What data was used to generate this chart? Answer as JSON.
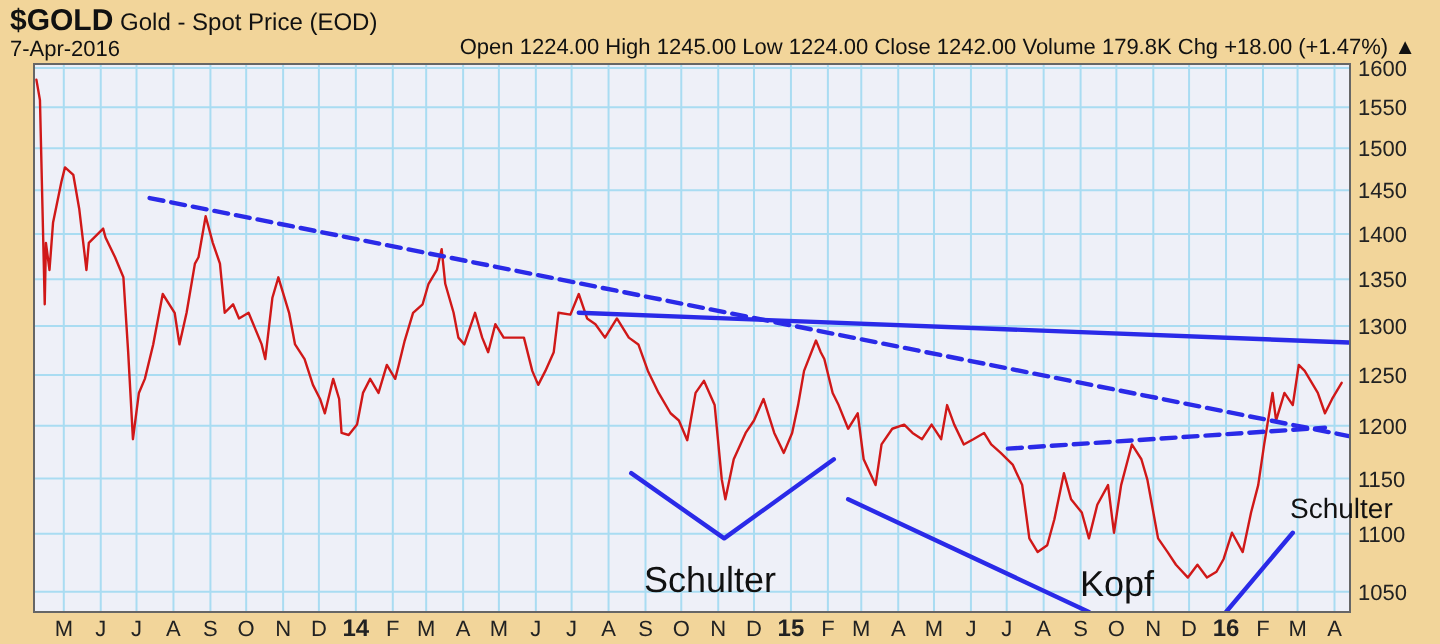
{
  "chart_data": {
    "type": "line",
    "title": "$GOLD Gold - Spot Price (EOD)",
    "subtitle": "7-Apr-2016",
    "log": true,
    "grid": true,
    "annotations": [
      "Open 1224.00  High 1245.00  Low 1224.00  Close 1242.00  Volume 179.8K  Chg +18.00 (+1.47%) ▲",
      "Schulter",
      "Kopf",
      "Schulter"
    ],
    "xlim": [
      "2013-04-06",
      "2016-04-14"
    ],
    "ylim": [
      1033,
      1605
    ],
    "yticks": [
      1050,
      1100,
      1150,
      1200,
      1250,
      1300,
      1350,
      1400,
      1450,
      1500,
      1550,
      1600
    ],
    "xticks": [
      {
        "value": "2013-05-01",
        "label": "M"
      },
      {
        "value": "2013-06-01",
        "label": "J"
      },
      {
        "value": "2013-07-01",
        "label": "J"
      },
      {
        "value": "2013-08-01",
        "label": "A"
      },
      {
        "value": "2013-09-01",
        "label": "S"
      },
      {
        "value": "2013-10-01",
        "label": "O"
      },
      {
        "value": "2013-11-01",
        "label": "N"
      },
      {
        "value": "2013-12-01",
        "label": "D"
      },
      {
        "value": "2014-01-01",
        "label": "14"
      },
      {
        "value": "2014-02-01",
        "label": "F"
      },
      {
        "value": "2014-03-01",
        "label": "M"
      },
      {
        "value": "2014-04-01",
        "label": "A"
      },
      {
        "value": "2014-05-01",
        "label": "M"
      },
      {
        "value": "2014-06-01",
        "label": "J"
      },
      {
        "value": "2014-07-01",
        "label": "J"
      },
      {
        "value": "2014-08-01",
        "label": "A"
      },
      {
        "value": "2014-09-01",
        "label": "S"
      },
      {
        "value": "2014-10-01",
        "label": "O"
      },
      {
        "value": "2014-11-01",
        "label": "N"
      },
      {
        "value": "2014-12-01",
        "label": "D"
      },
      {
        "value": "2015-01-01",
        "label": "15"
      },
      {
        "value": "2015-02-01",
        "label": "F"
      },
      {
        "value": "2015-03-01",
        "label": "M"
      },
      {
        "value": "2015-04-01",
        "label": "A"
      },
      {
        "value": "2015-05-01",
        "label": "M"
      },
      {
        "value": "2015-06-01",
        "label": "J"
      },
      {
        "value": "2015-07-01",
        "label": "J"
      },
      {
        "value": "2015-08-01",
        "label": "A"
      },
      {
        "value": "2015-09-01",
        "label": "S"
      },
      {
        "value": "2015-10-01",
        "label": "O"
      },
      {
        "value": "2015-11-01",
        "label": "N"
      },
      {
        "value": "2015-12-01",
        "label": "D"
      },
      {
        "value": "2016-01-01",
        "label": "16"
      },
      {
        "value": "2016-02-01",
        "label": "F"
      },
      {
        "value": "2016-03-01",
        "label": "M"
      },
      {
        "value": "2016-04-01",
        "label": "A"
      }
    ],
    "series": [
      {
        "type": "line",
        "color": "#d01818",
        "x": [
          "2013-04-08",
          "2013-04-11",
          "2013-04-15",
          "2013-04-16",
          "2013-04-19",
          "2013-04-22",
          "2013-04-29",
          "2013-05-02",
          "2013-05-09",
          "2013-05-14",
          "2013-05-20",
          "2013-05-22",
          "2013-06-03",
          "2013-06-05",
          "2013-06-13",
          "2013-06-20",
          "2013-06-24",
          "2013-06-28",
          "2013-07-03",
          "2013-07-08",
          "2013-07-15",
          "2013-07-23",
          "2013-08-02",
          "2013-08-06",
          "2013-08-12",
          "2013-08-19",
          "2013-08-22",
          "2013-08-28",
          "2013-09-03",
          "2013-09-09",
          "2013-09-13",
          "2013-09-20",
          "2013-09-25",
          "2013-10-03",
          "2013-10-14",
          "2013-10-17",
          "2013-10-23",
          "2013-10-28",
          "2013-11-06",
          "2013-11-11",
          "2013-11-19",
          "2013-11-26",
          "2013-12-02",
          "2013-12-06",
          "2013-12-13",
          "2013-12-18",
          "2013-12-20",
          "2013-12-26",
          "2014-01-02",
          "2014-01-07",
          "2014-01-13",
          "2014-01-20",
          "2014-01-27",
          "2014-02-03",
          "2014-02-06",
          "2014-02-11",
          "2014-02-18",
          "2014-02-26",
          "2014-03-03",
          "2014-03-10",
          "2014-03-14",
          "2014-03-17",
          "2014-03-24",
          "2014-03-28",
          "2014-04-02",
          "2014-04-11",
          "2014-04-17",
          "2014-04-22",
          "2014-04-28",
          "2014-05-05",
          "2014-05-12",
          "2014-05-22",
          "2014-05-29",
          "2014-06-03",
          "2014-06-09",
          "2014-06-16",
          "2014-06-20",
          "2014-06-30",
          "2014-07-07",
          "2014-07-14",
          "2014-07-21",
          "2014-07-29",
          "2014-08-08",
          "2014-08-18",
          "2014-08-26",
          "2014-09-03",
          "2014-09-12",
          "2014-09-22",
          "2014-09-29",
          "2014-10-06",
          "2014-10-13",
          "2014-10-20",
          "2014-10-29",
          "2014-11-04",
          "2014-11-07",
          "2014-11-14",
          "2014-11-24",
          "2014-12-01",
          "2014-12-09",
          "2014-12-18",
          "2014-12-26",
          "2015-01-02",
          "2015-01-07",
          "2015-01-12",
          "2015-01-22",
          "2015-01-26",
          "2015-01-29",
          "2015-02-05",
          "2015-02-10",
          "2015-02-18",
          "2015-02-26",
          "2015-03-03",
          "2015-03-13",
          "2015-03-18",
          "2015-03-27",
          "2015-04-06",
          "2015-04-13",
          "2015-04-21",
          "2015-04-29",
          "2015-05-07",
          "2015-05-12",
          "2015-05-18",
          "2015-05-26",
          "2015-06-03",
          "2015-06-12",
          "2015-06-18",
          "2015-06-26",
          "2015-07-06",
          "2015-07-14",
          "2015-07-20",
          "2015-07-27",
          "2015-08-04",
          "2015-08-10",
          "2015-08-18",
          "2015-08-24",
          "2015-09-02",
          "2015-09-08",
          "2015-09-15",
          "2015-09-24",
          "2015-09-29",
          "2015-10-05",
          "2015-10-14",
          "2015-10-22",
          "2015-10-27",
          "2015-11-05",
          "2015-11-13",
          "2015-11-20",
          "2015-11-30",
          "2015-12-08",
          "2015-12-16",
          "2015-12-24",
          "2015-12-30",
          "2016-01-06",
          "2016-01-15",
          "2016-01-22",
          "2016-01-28",
          "2016-02-02",
          "2016-02-09",
          "2016-02-12",
          "2016-02-19",
          "2016-02-26",
          "2016-03-02",
          "2016-03-07",
          "2016-03-14",
          "2016-03-18",
          "2016-03-24",
          "2016-03-30",
          "2016-04-07"
        ],
        "values": [
          1585,
          1559,
          1323,
          1390,
          1360,
          1413,
          1460,
          1477,
          1468,
          1428,
          1360,
          1390,
          1406,
          1396,
          1374,
          1352,
          1273,
          1187,
          1232,
          1246,
          1281,
          1334,
          1314,
          1281,
          1314,
          1367,
          1374,
          1420,
          1390,
          1367,
          1314,
          1323,
          1308,
          1314,
          1281,
          1266,
          1330,
          1352,
          1314,
          1281,
          1266,
          1240,
          1226,
          1212,
          1246,
          1226,
          1193,
          1191,
          1201,
          1232,
          1246,
          1232,
          1260,
          1246,
          1260,
          1285,
          1314,
          1323,
          1345,
          1360,
          1383,
          1345,
          1314,
          1288,
          1281,
          1314,
          1288,
          1273,
          1302,
          1288,
          1288,
          1288,
          1254,
          1240,
          1254,
          1273,
          1314,
          1312,
          1334,
          1308,
          1302,
          1288,
          1308,
          1288,
          1281,
          1254,
          1232,
          1212,
          1205,
          1186,
          1232,
          1244,
          1220,
          1149,
          1131,
          1168,
          1193,
          1205,
          1226,
          1193,
          1174,
          1193,
          1220,
          1254,
          1285,
          1273,
          1266,
          1232,
          1220,
          1197,
          1212,
          1168,
          1144,
          1182,
          1197,
          1201,
          1193,
          1187,
          1201,
          1187,
          1220,
          1201,
          1182,
          1187,
          1193,
          1182,
          1174,
          1163,
          1144,
          1096,
          1084,
          1090,
          1113,
          1155,
          1131,
          1119,
          1096,
          1126,
          1144,
          1101,
          1144,
          1182,
          1168,
          1149,
          1096,
          1084,
          1073,
          1062,
          1073,
          1062,
          1067,
          1078,
          1101,
          1084,
          1119,
          1144,
          1182,
          1232,
          1205,
          1232,
          1220,
          1260,
          1254,
          1240,
          1232,
          1212,
          1226,
          1242
        ]
      },
      {
        "type": "line",
        "color": "#2a2ae8",
        "line_style": "dashed",
        "x": [
          "2013-07-12",
          "2016-04-13"
        ],
        "values": [
          1441,
          1190
        ]
      },
      {
        "type": "line",
        "color": "#2a2ae8",
        "line_style": "solid",
        "x": [
          "2014-07-07",
          "2016-04-13"
        ],
        "values": [
          1314,
          1283
        ]
      },
      {
        "type": "line",
        "color": "#2a2ae8",
        "line_style": "dashed",
        "x": [
          "2015-07-02",
          "2016-03-24"
        ],
        "values": [
          1178,
          1198
        ]
      },
      {
        "type": "line",
        "color": "#2a2ae8",
        "line_style": "solid",
        "x": [
          "2014-08-20",
          "2014-11-06",
          "2015-02-06"
        ],
        "values": [
          1155,
          1096,
          1168
        ]
      },
      {
        "type": "line",
        "color": "#2a2ae8",
        "line_style": "solid",
        "x": [
          "2015-02-18",
          "2015-09-08"
        ],
        "values": [
          1131,
          1033
        ]
      },
      {
        "type": "line",
        "color": "#2a2ae8",
        "line_style": "solid",
        "x": [
          "2016-01-01",
          "2016-02-26"
        ],
        "values": [
          1033,
          1101
        ]
      }
    ]
  }
}
